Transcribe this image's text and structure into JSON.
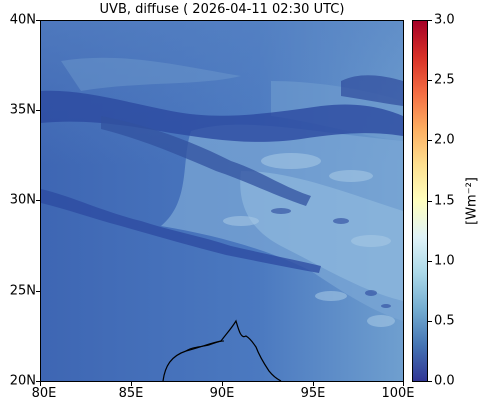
{
  "title": "UVB, diffuse ( 2026-04-11 02:30 UTC)",
  "map": {
    "lon_ticks": [
      "80E",
      "85E",
      "90E",
      "95E",
      "100E"
    ],
    "lat_ticks": [
      "40N",
      "35N",
      "30N",
      "25N",
      "20N"
    ],
    "lon_range": [
      80,
      100
    ],
    "lat_range": [
      20,
      40
    ],
    "background_color": "#4a74bd",
    "coastline_color": "#000000"
  },
  "colorbar": {
    "label": "[Wm⁻²]",
    "ticks": [
      "3.0",
      "2.5",
      "2.0",
      "1.5",
      "1.0",
      "0.5",
      "0.0"
    ],
    "range": [
      0.0,
      3.0
    ],
    "colormap": "RdYlBu_r"
  }
}
